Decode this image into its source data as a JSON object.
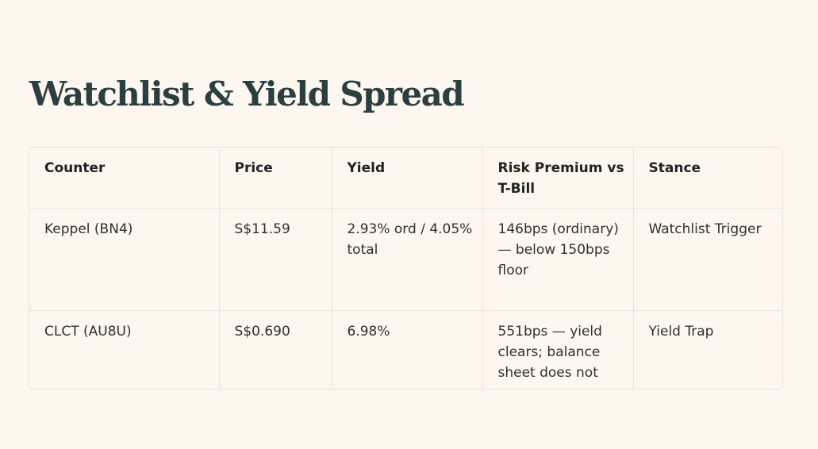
{
  "page": {
    "title": "Watchlist & Yield Spread"
  },
  "table": {
    "headers": [
      "Counter",
      "Price",
      "Yield",
      "Risk Premium vs T-Bill",
      "Stance"
    ],
    "rows": [
      {
        "counter": "Keppel (BN4)",
        "price": "S$11.59",
        "yield": "2.93% ord / 4.05% total",
        "risk_premium": "146bps (ordinary) — below 150bps floor",
        "stance": "Watchlist Trigger"
      },
      {
        "counter": "CLCT (AU8U)",
        "price": "S$0.690",
        "yield": "6.98%",
        "risk_premium": "551bps — yield clears; balance sheet does not",
        "stance": "Yield Trap"
      }
    ]
  },
  "colors": {
    "background": "#fdf7f0",
    "title": "#2c3f40",
    "border": "#ebe2d6"
  }
}
